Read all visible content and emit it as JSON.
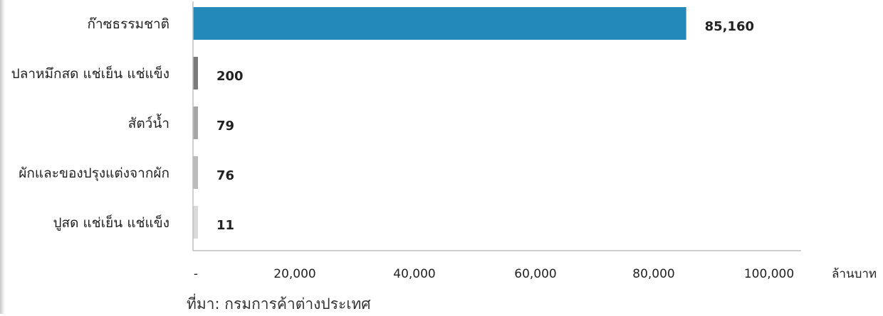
{
  "chart_data": {
    "type": "bar",
    "orientation": "horizontal",
    "categories": [
      "ก๊าซธรรมชาติ",
      "ปลาหมึกสด แช่เย็น แช่แข็ง",
      "สัตว์น้ำ",
      "ผักและของปรุงแต่งจากผัก",
      "ปูสด แช่เย็น แช่แข็ง"
    ],
    "values": [
      85160,
      200,
      79,
      76,
      11
    ],
    "value_labels": [
      "85,160",
      "200",
      "79",
      "76",
      "11"
    ],
    "bar_colors": [
      "#2389bb",
      "#7a7a7a",
      "#a6a6a6",
      "#bcbcbc",
      "#d9d9d9"
    ],
    "x_ticks": [
      {
        "value": 0,
        "label": "-"
      },
      {
        "value": 20000,
        "label": "20,000"
      },
      {
        "value": 40000,
        "label": "40,000"
      },
      {
        "value": 60000,
        "label": "60,000"
      },
      {
        "value": 80000,
        "label": "80,000"
      },
      {
        "value": 100000,
        "label": "100,000"
      }
    ],
    "xlim": [
      0,
      105000
    ],
    "x_unit": "ล้านบาท",
    "grid": false
  },
  "source": "ที่มา: กรมการค้าต่างประเทศ"
}
